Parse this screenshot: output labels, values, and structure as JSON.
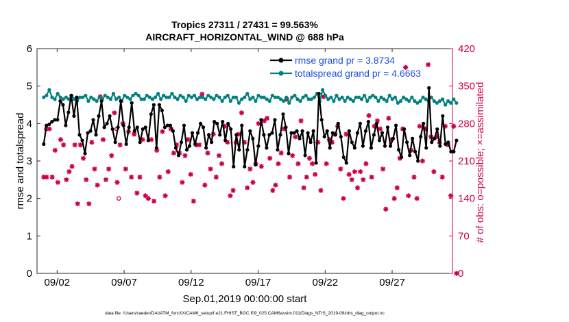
{
  "chart_data": {
    "type": "line",
    "title_line1": "Tropics 27311 / 27431 = 99.563%",
    "title_line2": "AIRCRAFT_HORIZONTAL_WIND @ 688 hPa",
    "xlabel": "Sep.01,2019 00:00:00 start",
    "ylabel_left": "rmse and totalspread",
    "ylabel_right": "# of obs: o=possible; ×=assimilated",
    "footer": "data file: /Users/raeder/DAI/ATM_forcXX/CAM6_setup/f.e21.FHIST_BGC.f09_025.CAM6assim.011/Diags_NTrS_2019-09/obs_diag_output.nc",
    "x_range_days": [
      0.5,
      31.5
    ],
    "xticks": [
      {
        "day": 2,
        "label": "09/02"
      },
      {
        "day": 7,
        "label": "09/07"
      },
      {
        "day": 12,
        "label": "09/12"
      },
      {
        "day": 17,
        "label": "09/17"
      },
      {
        "day": 22,
        "label": "09/22"
      },
      {
        "day": 27,
        "label": "09/27"
      }
    ],
    "ylim_left": [
      0,
      6
    ],
    "yticks_left": [
      "0",
      "1",
      "2",
      "3",
      "4",
      "5",
      "6"
    ],
    "ylim_right": [
      0,
      420
    ],
    "yticks_right": [
      "0",
      "70",
      "140",
      "210",
      "280",
      "350",
      "420"
    ],
    "colors": {
      "rmse": "#000000",
      "spread": "#008080",
      "obs": "#cc0044",
      "right_axis": "#cc0044",
      "legend_text": "#1f4fe0"
    },
    "series": [
      {
        "name": "rmse grand pr = 3.8734",
        "key": "rmse",
        "values": [
          3.45,
          3.95,
          3.98,
          4.05,
          4.1,
          4.1,
          4.6,
          4.5,
          3.95,
          4.3,
          4.75,
          4.2,
          4.7,
          3.7,
          3.55,
          3.2,
          3.75,
          3.8,
          4.1,
          3.7,
          4.2,
          4.6,
          3.9,
          4.0,
          4.2,
          3.85,
          3.5,
          3.9,
          4.6,
          3.95,
          3.45,
          3.9,
          4.55,
          3.8,
          3.9,
          3.5,
          3.85,
          3.9,
          3.55,
          4.25,
          4.5,
          3.35,
          4.5,
          4.35,
          3.9,
          3.95,
          3.95,
          3.8,
          3.35,
          3.15,
          3.5,
          3.95,
          3.3,
          3.4,
          3.75,
          3.45,
          3.75,
          4.0,
          3.9,
          3.35,
          3.7,
          3.5,
          4.05,
          4.0,
          3.7,
          4.05,
          3.55,
          4.0,
          3.85,
          2.85,
          3.7,
          3.3,
          3.95,
          2.85,
          3.3,
          3.8,
          3.6,
          2.9,
          3.4,
          4.1,
          3.7,
          3.35,
          3.7,
          3.75,
          4.1,
          3.3,
          3.7,
          4.25,
          3.9,
          3.2,
          3.75,
          3.75,
          3.8,
          3.6,
          3.8,
          3.15,
          3.75,
          3.5,
          3.8,
          2.95,
          4.8,
          4.1,
          3.65,
          3.8,
          3.35,
          3.75,
          3.7,
          4.0,
          3.65,
          3.1,
          2.95,
          3.8,
          3.5,
          3.35,
          3.75,
          4.0,
          3.4,
          3.8,
          4.05,
          3.35,
          3.7,
          4.0,
          3.55,
          3.75,
          3.4,
          3.9,
          3.4,
          3.6,
          3.95,
          3.3,
          3.1,
          3.85,
          3.5,
          3.15,
          3.6,
          3.25,
          3.0,
          3.65,
          4.0,
          3.35,
          4.95,
          3.5,
          3.6,
          3.85,
          3.4,
          4.2,
          3.45,
          3.5,
          3.25,
          3.25,
          3.55
        ]
      },
      {
        "name": "totalspread grand pr = 4.6663",
        "key": "spread",
        "values": [
          4.7,
          4.75,
          4.9,
          4.7,
          4.65,
          4.8,
          4.7,
          4.65,
          4.7,
          4.65,
          4.75,
          4.65,
          4.6,
          4.7,
          4.7,
          4.75,
          4.6,
          4.7,
          4.65,
          4.6,
          4.7,
          4.65,
          4.75,
          4.7,
          4.65,
          4.8,
          4.65,
          4.7,
          4.6,
          4.75,
          4.7,
          4.65,
          4.75,
          4.8,
          4.75,
          4.65,
          4.65,
          4.75,
          4.7,
          4.65,
          4.7,
          4.8,
          4.65,
          4.75,
          4.7,
          4.7,
          4.8,
          4.7,
          4.65,
          4.75,
          4.7,
          4.6,
          4.75,
          4.7,
          4.75,
          4.65,
          4.7,
          4.7,
          4.65,
          4.75,
          4.7,
          4.65,
          4.75,
          4.7,
          4.6,
          4.7,
          4.75,
          4.6,
          4.7,
          4.7,
          4.55,
          4.65,
          4.7,
          4.8,
          4.65,
          4.7,
          4.6,
          4.75,
          4.7,
          4.7,
          4.65,
          4.6,
          4.75,
          4.7,
          4.7,
          4.65,
          4.6,
          4.7,
          4.55,
          4.7,
          4.75,
          4.65,
          4.6,
          4.7,
          4.75,
          4.65,
          4.65,
          4.7,
          4.8,
          4.6,
          4.9,
          4.75,
          4.65,
          4.7,
          4.6,
          4.75,
          4.65,
          4.7,
          4.6,
          4.7,
          4.65,
          4.6,
          4.7,
          4.7,
          4.65,
          4.75,
          4.6,
          4.7,
          4.75,
          4.7,
          4.6,
          4.7,
          4.65,
          4.6,
          4.75,
          4.65,
          4.7,
          4.55,
          4.6,
          4.7,
          4.65,
          4.6,
          4.7,
          4.6,
          4.55,
          4.6,
          4.7,
          4.65,
          4.6,
          4.7,
          4.6,
          4.55,
          4.6,
          4.65,
          4.5,
          4.6,
          4.55,
          4.65,
          4.55
        ]
      },
      {
        "name": "# of obs assimilated",
        "key": "obs",
        "values": [
          180,
          180,
          270,
          180,
          230,
          170,
          250,
          240,
          175,
          190,
          200,
          240,
          130,
          240,
          215,
          175,
          130,
          245,
          195,
          165,
          330,
          250,
          175,
          195,
          220,
          300,
          170,
          240,
          280,
          195,
          265,
          180,
          260,
          150,
          180,
          250,
          145,
          140,
          250,
          135,
          230,
          180,
          265,
          145,
          190,
          270,
          225,
          240,
          225,
          170,
          220,
          250,
          185,
          135,
          240,
          240,
          335,
          165,
          225,
          195,
          260,
          180,
          220,
          205,
          275,
          245,
          145,
          155,
          245,
          260,
          300,
          245,
          160,
          195,
          170,
          205,
          280,
          200,
          285,
          290,
          215,
          155,
          165,
          205,
          225,
          270,
          325,
          180,
          220,
          255,
          205,
          285,
          160,
          180,
          215,
          205,
          185,
          245,
          155,
          330,
          205,
          250,
          245,
          260,
          275,
          195,
          140,
          260,
          185,
          175,
          190,
          160,
          190,
          175,
          205,
          295,
          180,
          275,
          285,
          270,
          195,
          120,
          290,
          250,
          140,
          160,
          215,
          270,
          385,
          145,
          230,
          180,
          140,
          275,
          210,
          270,
          390,
          255,
          190,
          255,
          245,
          180,
          275,
          240,
          145,
          275,
          0
        ]
      }
    ],
    "possible_circles": [
      {
        "day": 1.18,
        "obs": 270
      },
      {
        "day": 6.6,
        "obs": 140
      },
      {
        "day": 6.45,
        "obs": 270
      }
    ]
  }
}
